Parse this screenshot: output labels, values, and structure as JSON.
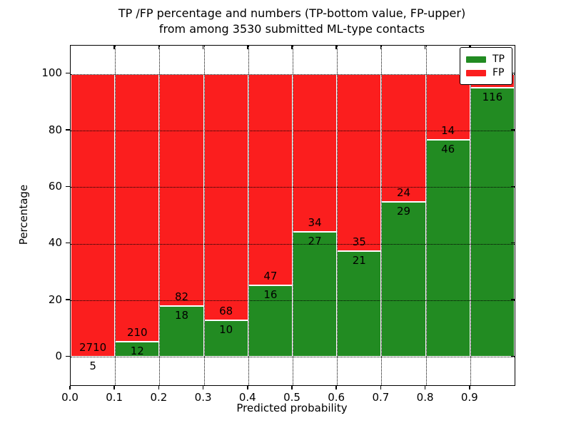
{
  "figure": {
    "title_line1": "TP /FP percentage and numbers (TP-bottom value, FP-upper)",
    "title_line2": "from among 3530 submitted ML-type contacts",
    "xlabel": "Predicted probability",
    "ylabel": "Percentage"
  },
  "chart_data": {
    "type": "bar",
    "stacked": true,
    "title": "TP /FP percentage and numbers (TP-bottom value, FP-upper) from among 3530 submitted ML-type contacts",
    "xlabel": "Predicted probability",
    "ylabel": "Percentage",
    "xlim": [
      0.0,
      1.0
    ],
    "ylim": [
      -10,
      110
    ],
    "grid": true,
    "legend_position": "upper right",
    "bar_width": 0.1,
    "bar_starts": [
      0.0,
      0.1,
      0.2,
      0.3,
      0.4,
      0.5,
      0.6,
      0.7,
      0.8,
      0.9
    ],
    "x_ticks": [
      0.0,
      0.1,
      0.2,
      0.3,
      0.4,
      0.5,
      0.6,
      0.7,
      0.8,
      0.9
    ],
    "x_tick_labels": [
      "0.0",
      "0.1",
      "0.2",
      "0.3",
      "0.4",
      "0.5",
      "0.6",
      "0.7",
      "0.8",
      "0.9"
    ],
    "y_ticks": [
      0,
      20,
      40,
      60,
      80,
      100
    ],
    "y_tick_labels": [
      "0",
      "20",
      "40",
      "60",
      "80",
      "100"
    ],
    "series": [
      {
        "name": "TP",
        "color": "#228b22",
        "counts": [
          5,
          12,
          18,
          10,
          16,
          27,
          21,
          29,
          46,
          116
        ]
      },
      {
        "name": "FP",
        "color": "#fb1e1e",
        "counts": [
          2710,
          210,
          82,
          68,
          47,
          34,
          35,
          24,
          14,
          null
        ]
      }
    ],
    "tp_percent": [
      0.18,
      5.41,
      18.0,
      12.82,
      25.4,
      44.26,
      37.5,
      54.72,
      76.67,
      95.1
    ],
    "stack_top_percent": 100,
    "tp_labels": [
      "5",
      "12",
      "18",
      "10",
      "16",
      "27",
      "21",
      "29",
      "46",
      "116"
    ],
    "fp_labels": [
      "2710",
      "210",
      "82",
      "68",
      "47",
      "34",
      "35",
      "24",
      "14",
      ""
    ],
    "legend": [
      {
        "label": "TP",
        "color": "#228b22"
      },
      {
        "label": "FP",
        "color": "#fb1e1e"
      }
    ]
  }
}
